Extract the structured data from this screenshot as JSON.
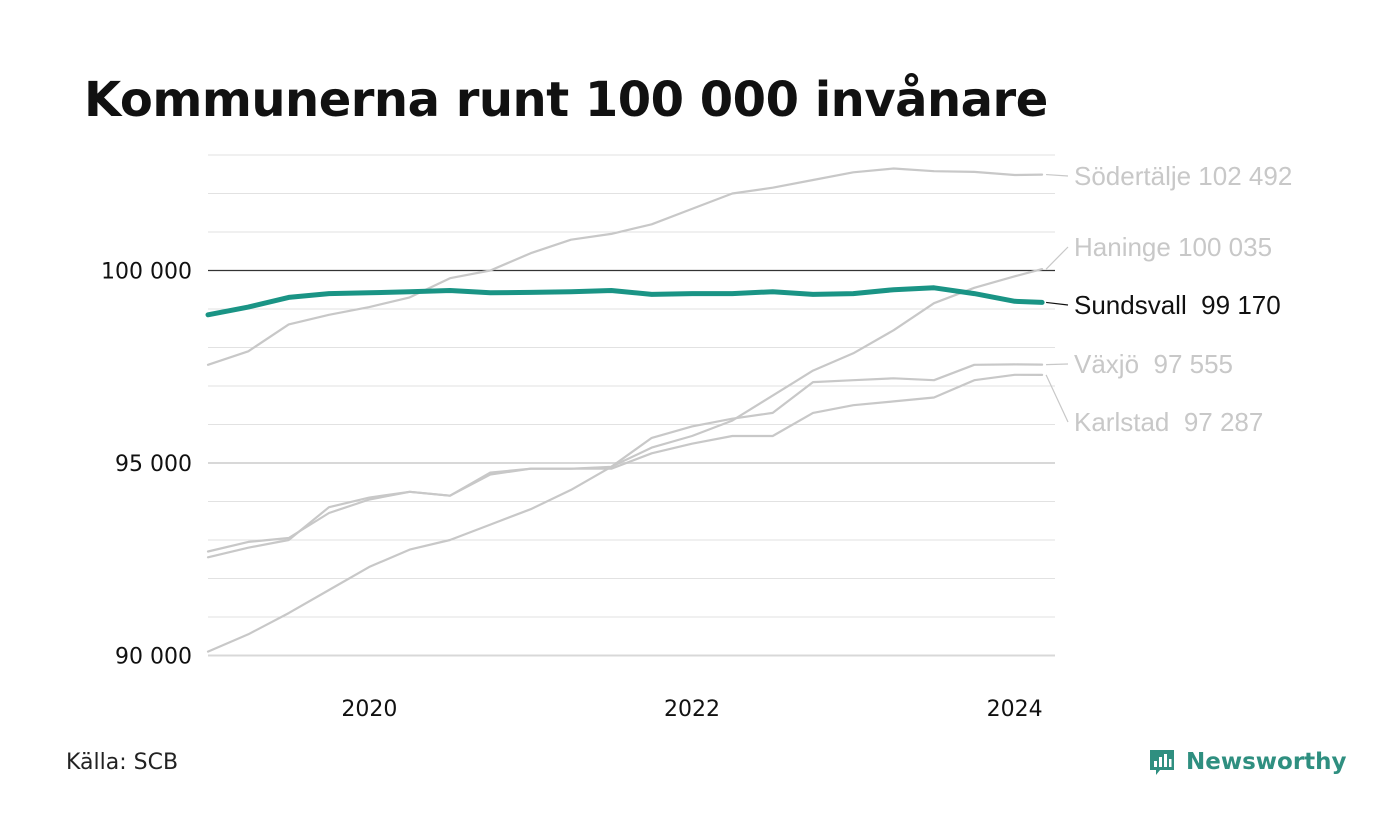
{
  "title": "Kommunerna runt 100 000 invånare",
  "source": "Källa: SCB",
  "brand": {
    "name": "Newsworthy",
    "icon": "newsworthy-logo-icon",
    "color": "#2f8f80"
  },
  "colors": {
    "highlight": "#1a9485",
    "muted": "#c8c8c8",
    "reference_line": "#333333",
    "grid": "#e2e2e2"
  },
  "chart_data": {
    "type": "line",
    "title": "Kommunerna runt 100 000 invånare",
    "xlabel": "",
    "ylabel": "",
    "x_ticks": [
      {
        "value": 2020,
        "label": "2020"
      },
      {
        "value": 2022,
        "label": "2022"
      },
      {
        "value": 2024,
        "label": "2024"
      }
    ],
    "y_ticks": [
      {
        "value": 90000,
        "label": "90 000"
      },
      {
        "value": 95000,
        "label": "95 000"
      },
      {
        "value": 100000,
        "label": "100 000"
      }
    ],
    "xlim": [
      2019.0,
      2024.25
    ],
    "ylim": [
      89700,
      103000
    ],
    "reference_line": 100000,
    "grid": true,
    "legend": "direct labels at right end of lines",
    "series": [
      {
        "name": "Södertälje",
        "label": "Södertälje 102 492",
        "highlight": false,
        "points": [
          [
            2019.0,
            97550
          ],
          [
            2019.25,
            97900
          ],
          [
            2019.5,
            98600
          ],
          [
            2019.75,
            98850
          ],
          [
            2020.0,
            99050
          ],
          [
            2020.25,
            99300
          ],
          [
            2020.5,
            99800
          ],
          [
            2020.75,
            100000
          ],
          [
            2021.0,
            100450
          ],
          [
            2021.25,
            100800
          ],
          [
            2021.5,
            100950
          ],
          [
            2021.75,
            101200
          ],
          [
            2022.0,
            101600
          ],
          [
            2022.25,
            102000
          ],
          [
            2022.5,
            102150
          ],
          [
            2022.75,
            102350
          ],
          [
            2023.0,
            102550
          ],
          [
            2023.25,
            102650
          ],
          [
            2023.5,
            102580
          ],
          [
            2023.75,
            102560
          ],
          [
            2024.0,
            102480
          ],
          [
            2024.17,
            102492
          ]
        ]
      },
      {
        "name": "Haninge",
        "label": "Haninge 100 035",
        "highlight": false,
        "points": [
          [
            2019.0,
            90100
          ],
          [
            2019.25,
            90550
          ],
          [
            2019.5,
            91100
          ],
          [
            2019.75,
            91700
          ],
          [
            2020.0,
            92300
          ],
          [
            2020.25,
            92750
          ],
          [
            2020.5,
            93000
          ],
          [
            2020.75,
            93400
          ],
          [
            2021.0,
            93800
          ],
          [
            2021.25,
            94300
          ],
          [
            2021.5,
            94900
          ],
          [
            2021.75,
            95400
          ],
          [
            2022.0,
            95700
          ],
          [
            2022.25,
            96100
          ],
          [
            2022.5,
            96750
          ],
          [
            2022.75,
            97400
          ],
          [
            2023.0,
            97850
          ],
          [
            2023.25,
            98450
          ],
          [
            2023.5,
            99150
          ],
          [
            2023.75,
            99550
          ],
          [
            2024.0,
            99850
          ],
          [
            2024.17,
            100035
          ]
        ]
      },
      {
        "name": "Växjö",
        "label": "Växjö  97 555",
        "highlight": false,
        "points": [
          [
            2019.0,
            92700
          ],
          [
            2019.25,
            92950
          ],
          [
            2019.5,
            93050
          ],
          [
            2019.75,
            93700
          ],
          [
            2020.0,
            94050
          ],
          [
            2020.25,
            94250
          ],
          [
            2020.5,
            94150
          ],
          [
            2020.75,
            94700
          ],
          [
            2021.0,
            94850
          ],
          [
            2021.25,
            94850
          ],
          [
            2021.5,
            94900
          ],
          [
            2021.75,
            95650
          ],
          [
            2022.0,
            95950
          ],
          [
            2022.25,
            96150
          ],
          [
            2022.5,
            96300
          ],
          [
            2022.75,
            97100
          ],
          [
            2023.0,
            97150
          ],
          [
            2023.25,
            97200
          ],
          [
            2023.5,
            97150
          ],
          [
            2023.75,
            97550
          ],
          [
            2024.0,
            97560
          ],
          [
            2024.17,
            97555
          ]
        ]
      },
      {
        "name": "Karlstad",
        "label": "Karlstad  97 287",
        "highlight": false,
        "points": [
          [
            2019.0,
            92550
          ],
          [
            2019.25,
            92800
          ],
          [
            2019.5,
            93000
          ],
          [
            2019.75,
            93850
          ],
          [
            2020.0,
            94100
          ],
          [
            2020.25,
            94250
          ],
          [
            2020.5,
            94150
          ],
          [
            2020.75,
            94750
          ],
          [
            2021.0,
            94850
          ],
          [
            2021.25,
            94850
          ],
          [
            2021.5,
            94850
          ],
          [
            2021.75,
            95250
          ],
          [
            2022.0,
            95500
          ],
          [
            2022.25,
            95700
          ],
          [
            2022.5,
            95700
          ],
          [
            2022.75,
            96300
          ],
          [
            2023.0,
            96500
          ],
          [
            2023.25,
            96600
          ],
          [
            2023.5,
            96700
          ],
          [
            2023.75,
            97150
          ],
          [
            2024.0,
            97290
          ],
          [
            2024.17,
            97287
          ]
        ]
      },
      {
        "name": "Sundsvall",
        "label": "Sundsvall  99 170",
        "highlight": true,
        "points": [
          [
            2019.0,
            98850
          ],
          [
            2019.25,
            99050
          ],
          [
            2019.5,
            99300
          ],
          [
            2019.75,
            99400
          ],
          [
            2020.0,
            99420
          ],
          [
            2020.25,
            99450
          ],
          [
            2020.5,
            99480
          ],
          [
            2020.75,
            99420
          ],
          [
            2021.0,
            99430
          ],
          [
            2021.25,
            99450
          ],
          [
            2021.5,
            99480
          ],
          [
            2021.75,
            99380
          ],
          [
            2022.0,
            99400
          ],
          [
            2022.25,
            99400
          ],
          [
            2022.5,
            99450
          ],
          [
            2022.75,
            99380
          ],
          [
            2023.0,
            99400
          ],
          [
            2023.25,
            99500
          ],
          [
            2023.5,
            99550
          ],
          [
            2023.75,
            99400
          ],
          [
            2024.0,
            99200
          ],
          [
            2024.17,
            99170
          ]
        ]
      }
    ]
  }
}
